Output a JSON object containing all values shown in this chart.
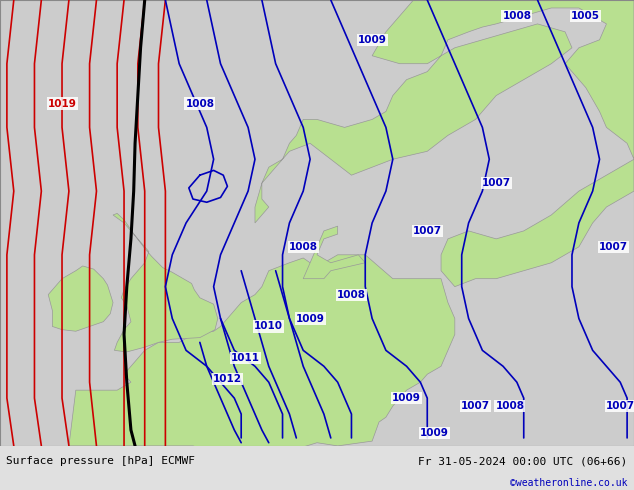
{
  "title_left": "Surface pressure [hPa] ECMWF",
  "title_right": "Fr 31-05-2024 00:00 UTC (06+66)",
  "watermark": "©weatheronline.co.uk",
  "land_color": "#b8e090",
  "sea_color": "#cccccc",
  "bottom_bar_color": "#e0e0e0",
  "blue": "#0000bb",
  "red": "#cc0000",
  "black": "#000000",
  "gray_coast": "#999999",
  "figsize": [
    6.34,
    4.9
  ],
  "dpi": 100,
  "xlim": [
    -14.0,
    32.0
  ],
  "ylim": [
    44.0,
    72.0
  ]
}
